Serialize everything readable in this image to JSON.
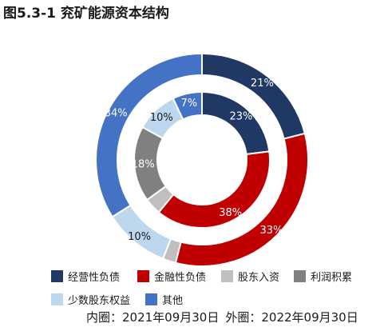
{
  "title": "图5.3-1 兖矿能源资本结构",
  "chart_data": {
    "type": "pie",
    "categories": [
      "经营性负债",
      "金融性负债",
      "股东入资",
      "利润积累",
      "少数股东权益",
      "其他"
    ],
    "colors": [
      "#203864",
      "#C00000",
      "#BFBFBF",
      "#808080",
      "#BDD7EE",
      "#4472C4"
    ],
    "series": [
      {
        "name": "外圈：2022年09月30日",
        "ring": "outer",
        "values": [
          21,
          33,
          2,
          0,
          10,
          34
        ]
      },
      {
        "name": "内圈：2021年09月30日",
        "ring": "inner",
        "values": [
          23,
          38,
          4,
          18,
          10,
          7
        ]
      }
    ],
    "labels_outer": [
      "21%",
      "33%",
      "",
      "",
      "10%",
      "34%"
    ],
    "labels_inner": [
      "23%",
      "38%",
      "",
      "18%",
      "10%",
      "7%"
    ]
  },
  "legend": [
    {
      "label": "经营性负债",
      "color": "#203864"
    },
    {
      "label": "金融性负债",
      "color": "#C00000"
    },
    {
      "label": "股东入资",
      "color": "#BFBFBF"
    },
    {
      "label": "利润积累",
      "color": "#808080"
    },
    {
      "label": "少数股东权益",
      "color": "#BDD7EE"
    },
    {
      "label": "其他",
      "color": "#4472C4"
    }
  ],
  "footer": {
    "inner_label": "内圈：2021年09月30日",
    "outer_label": "外圈：2022年09月30日"
  }
}
